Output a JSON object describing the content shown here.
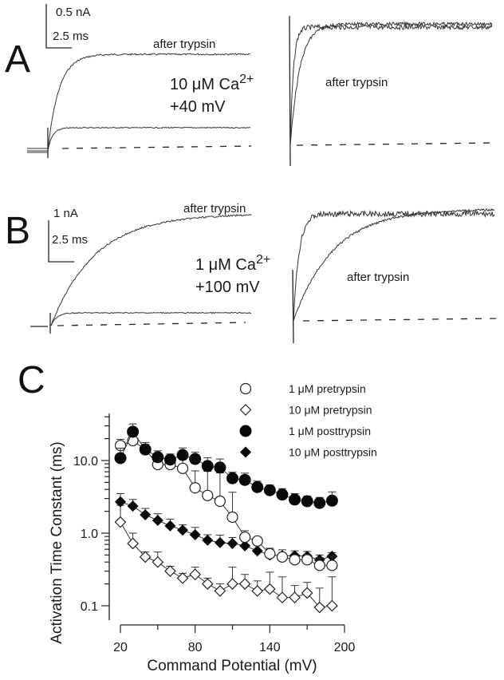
{
  "panels": {
    "A": {
      "letter": "A",
      "scale_current": "0.5 nA",
      "scale_time": "2.5 ms",
      "left_trace_label": "after trypsin",
      "condition_line1": "10 μM Ca",
      "condition_sup": "2+",
      "condition_line2": "+40 mV",
      "right_trace_label": "after trypsin"
    },
    "B": {
      "letter": "B",
      "scale_current": "1 nA",
      "scale_time": "2.5 ms",
      "left_trace_label": "after trypsin",
      "condition_line1": "1 μM Ca",
      "condition_sup": "2+",
      "condition_line2": "+100 mV",
      "right_trace_label": "after trypsin"
    },
    "C": {
      "letter": "C"
    }
  },
  "chart_data": {
    "type": "scatter",
    "title": "",
    "xlabel": "Command Potential (mV)",
    "ylabel": "Activation Time Constant (ms)",
    "x_ticks": [
      20,
      80,
      140,
      200
    ],
    "x_tick_labels": [
      "20",
      "80",
      "140",
      "200"
    ],
    "y_scale": "log",
    "y_ticks": [
      0.1,
      1.0,
      10.0
    ],
    "y_tick_labels": [
      "0.1",
      "1.0",
      "10.0"
    ],
    "xlim": [
      20,
      200
    ],
    "ylim": [
      0.08,
      40
    ],
    "legend_position": "top-right",
    "x": [
      20,
      30,
      40,
      50,
      60,
      70,
      80,
      90,
      100,
      110,
      120,
      130,
      140,
      150,
      160,
      170,
      180,
      190
    ],
    "series": [
      {
        "name": "1 μM pretrypsin",
        "marker": "open-circle",
        "values": [
          16.1,
          18.8,
          14.2,
          8.8,
          8.8,
          7.8,
          4.2,
          3.3,
          2.75,
          1.66,
          0.88,
          0.78,
          0.52,
          0.47,
          0.43,
          0.43,
          0.36,
          0.36
        ],
        "errors": [
          3.5,
          4.0,
          2.5,
          1.5,
          1.5,
          3.0,
          3.0,
          3.8,
          4.0,
          2.0,
          0.2,
          0.1,
          0.1,
          0.06,
          0.06,
          0.08,
          0.1,
          0.12
        ]
      },
      {
        "name": "10 μM pretrypsin",
        "marker": "open-diamond",
        "values": [
          1.42,
          0.72,
          0.47,
          0.4,
          0.3,
          0.24,
          0.27,
          0.2,
          0.16,
          0.2,
          0.2,
          0.16,
          0.17,
          0.13,
          0.13,
          0.15,
          0.095,
          0.1
        ],
        "errors": [
          1.0,
          0.28,
          0.08,
          0.15,
          0.05,
          0.04,
          0.07,
          0.04,
          0.04,
          0.14,
          0.07,
          0.06,
          0.12,
          0.12,
          0.06,
          0.06,
          0.08,
          0.15
        ]
      },
      {
        "name": "1 μM posttrypsin",
        "marker": "filled-circle",
        "values": [
          10.8,
          24.9,
          14.2,
          11.1,
          10.3,
          11.9,
          10.5,
          8.4,
          8.0,
          5.7,
          5.4,
          4.3,
          3.9,
          3.4,
          2.9,
          2.75,
          2.6,
          2.8
        ],
        "errors": [
          4.0,
          7.0,
          3.5,
          2.5,
          2.0,
          3.0,
          2.5,
          2.5,
          2.5,
          1.2,
          1.3,
          0.9,
          0.7,
          0.7,
          0.6,
          0.5,
          0.5,
          0.9
        ]
      },
      {
        "name": "10 μM posttrypsin",
        "marker": "filled-diamond",
        "values": [
          2.7,
          2.36,
          1.79,
          1.5,
          1.26,
          1.1,
          0.95,
          0.8,
          0.74,
          0.72,
          0.67,
          0.57,
          0.5,
          0.49,
          0.49,
          0.48,
          0.43,
          0.48
        ],
        "errors": [
          0.8,
          0.55,
          0.4,
          0.35,
          0.3,
          0.2,
          0.25,
          0.15,
          0.2,
          0.15,
          0.15,
          0.15,
          0.1,
          0.1,
          0.08,
          0.08,
          0.07,
          0.06
        ]
      }
    ]
  }
}
